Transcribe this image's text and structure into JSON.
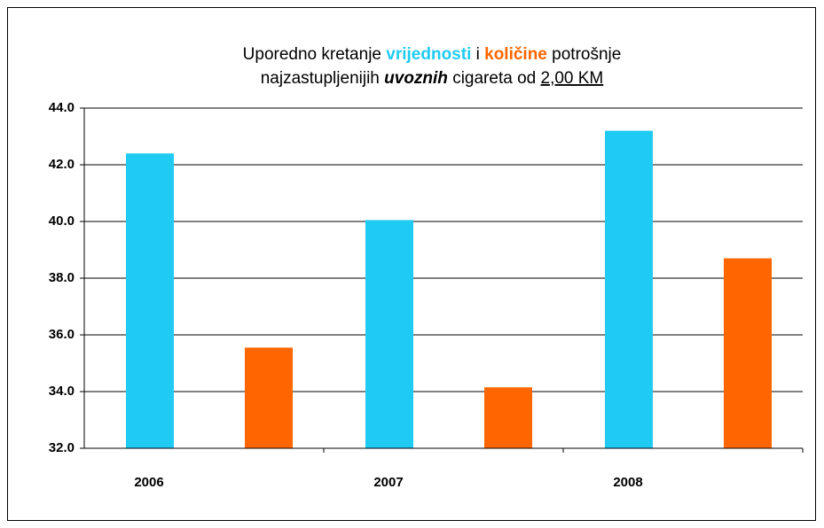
{
  "chart_data": {
    "type": "bar",
    "title": [
      [
        "Uporedno kretanje ",
        "vrijednosti",
        " i ",
        "količine",
        " potrošnje"
      ],
      [
        "najzastupljenijih ",
        "uvoznih",
        " cigareta od ",
        "2,00 KM"
      ]
    ],
    "categories": [
      "2006",
      "2007",
      "2008"
    ],
    "series": [
      {
        "color": "#1fcbf2",
        "values": [
          42.4,
          40.05,
          43.2
        ]
      },
      {
        "color": "#ff6600",
        "values": [
          35.55,
          34.15,
          38.7
        ]
      }
    ],
    "ylim": [
      32,
      44
    ],
    "yticks": [
      {
        "value": 32,
        "label": "32.0"
      },
      {
        "value": 34,
        "label": "34.0"
      },
      {
        "value": 36,
        "label": "36.0"
      },
      {
        "value": 38,
        "label": "38.0"
      },
      {
        "value": 40,
        "label": "40.0"
      },
      {
        "value": 42,
        "label": "42.0"
      },
      {
        "value": 44,
        "label": "44.0"
      }
    ],
    "grid": true
  }
}
